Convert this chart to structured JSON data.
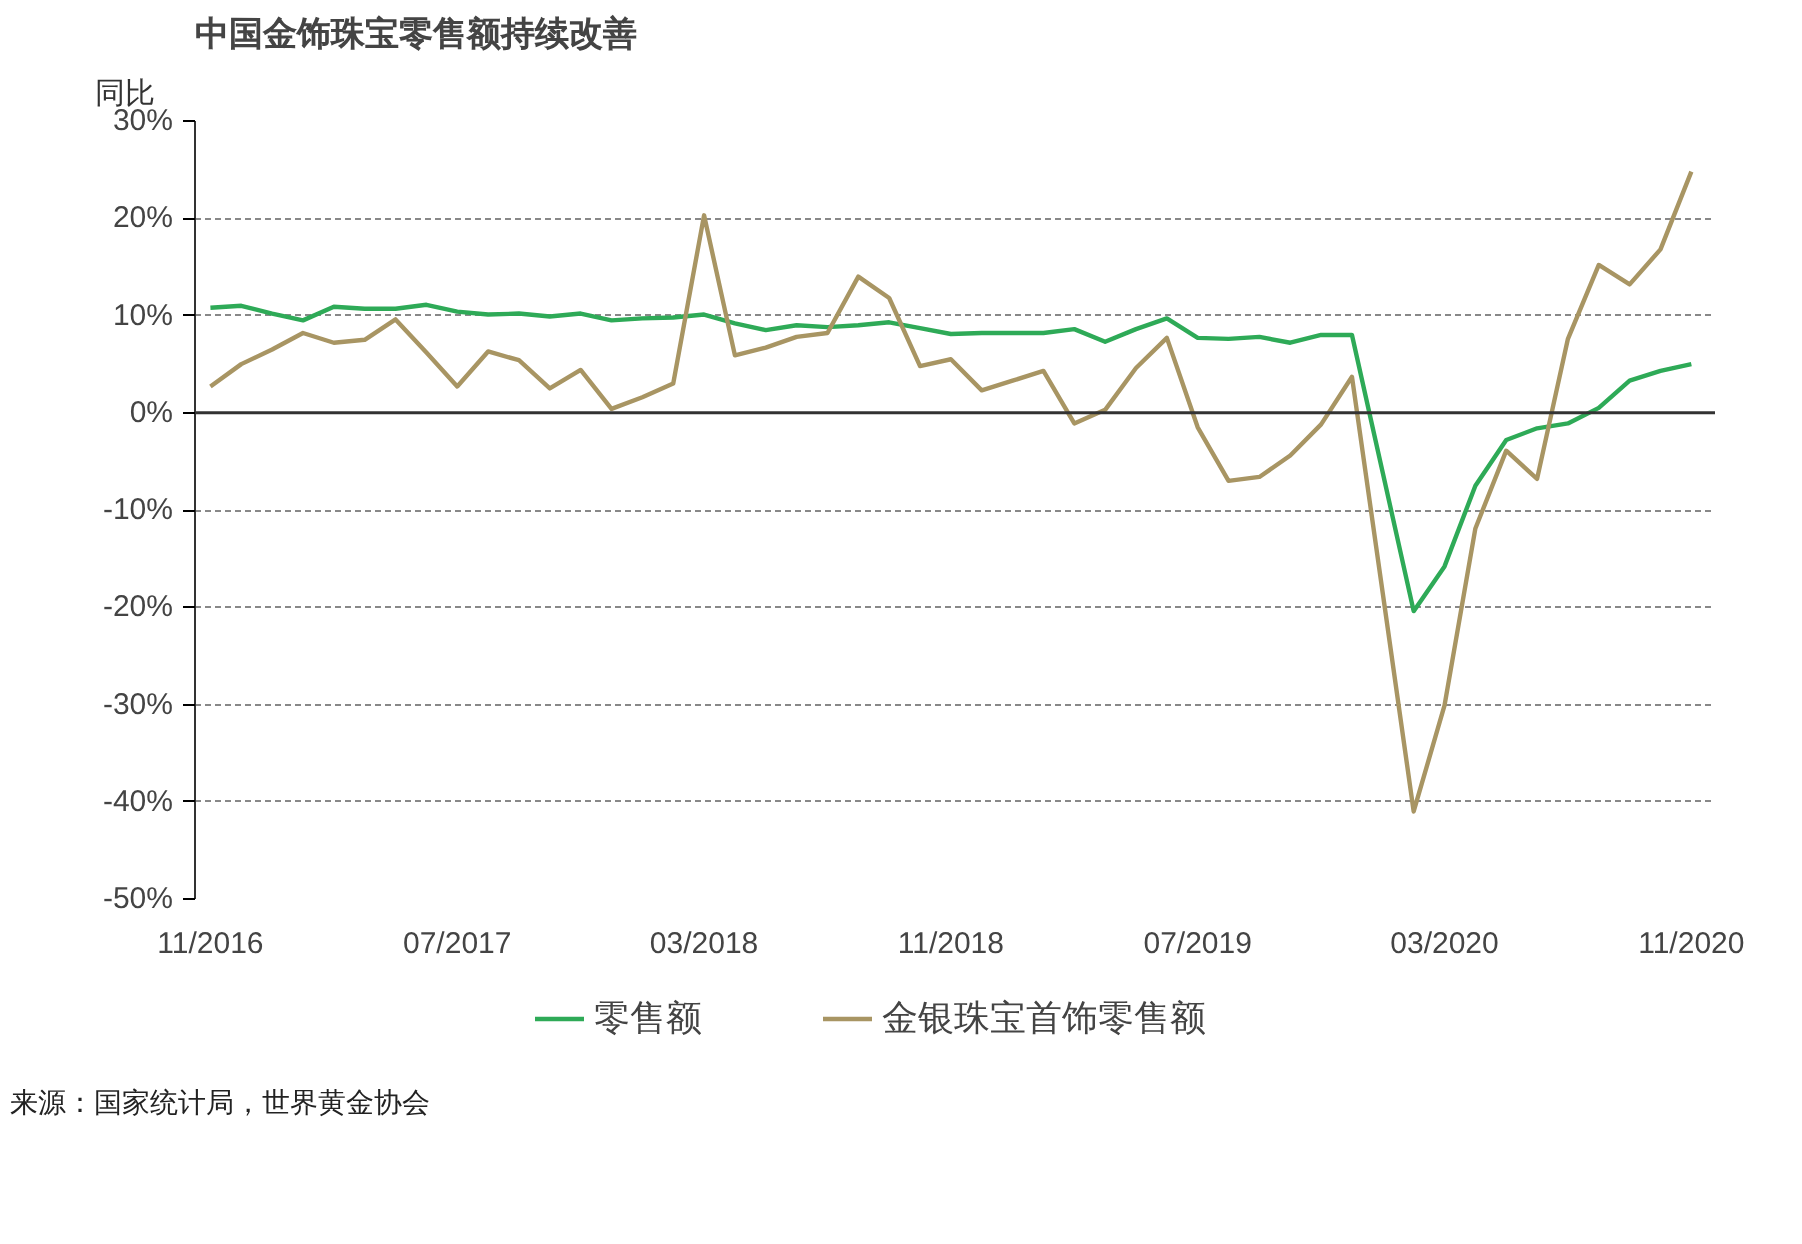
{
  "chart_data": {
    "type": "line",
    "title": "中国金饰珠宝零售额持续改善",
    "ylabel": "同比",
    "x": [
      "2016-11",
      "2016-12",
      "2017-01",
      "2017-02",
      "2017-03",
      "2017-04",
      "2017-05",
      "2017-06",
      "2017-07",
      "2017-08",
      "2017-09",
      "2017-10",
      "2017-11",
      "2017-12",
      "2018-01",
      "2018-02",
      "2018-03",
      "2018-04",
      "2018-05",
      "2018-06",
      "2018-07",
      "2018-08",
      "2018-09",
      "2018-10",
      "2018-11",
      "2018-12",
      "2019-01",
      "2019-02",
      "2019-03",
      "2019-04",
      "2019-05",
      "2019-06",
      "2019-07",
      "2019-08",
      "2019-09",
      "2019-10",
      "2019-11",
      "2019-12",
      "2020-01",
      "2020-02",
      "2020-03",
      "2020-04",
      "2020-05",
      "2020-06",
      "2020-07",
      "2020-08",
      "2020-09",
      "2020-10",
      "2020-11"
    ],
    "series": [
      {
        "name": "零售额",
        "color": "#2eaa57",
        "values": [
          10.8,
          11.0,
          10.2,
          9.5,
          10.9,
          10.7,
          10.7,
          11.1,
          10.4,
          10.1,
          10.2,
          9.9,
          10.2,
          9.5,
          9.7,
          9.8,
          10.1,
          9.2,
          8.5,
          9.0,
          8.8,
          9.0,
          9.3,
          8.7,
          8.1,
          8.2,
          8.2,
          8.2,
          8.6,
          7.3,
          8.6,
          9.7,
          7.7,
          7.6,
          7.8,
          7.2,
          8.0,
          8.0,
          -6.2,
          -20.4,
          -15.8,
          -7.5,
          -2.8,
          -1.6,
          -1.1,
          0.5,
          3.3,
          4.3,
          5.0
        ]
      },
      {
        "name": "金银珠宝首饰零售额",
        "color": "#a89563",
        "values": [
          2.7,
          5.0,
          6.5,
          8.2,
          7.2,
          7.5,
          9.6,
          6.2,
          2.7,
          6.3,
          5.4,
          2.5,
          4.4,
          0.4,
          1.6,
          3.0,
          20.3,
          5.9,
          6.7,
          7.8,
          8.2,
          14.0,
          11.8,
          4.8,
          5.5,
          2.3,
          3.3,
          4.3,
          -1.1,
          0.3,
          4.6,
          7.7,
          -1.5,
          -7.0,
          -6.6,
          -4.4,
          -1.2,
          3.7,
          -18.6,
          -41.0,
          -30.1,
          -11.9,
          -3.9,
          -6.8,
          7.6,
          15.2,
          13.2,
          16.8,
          24.8
        ]
      }
    ],
    "xlim": [
      "2016-10-16",
      "2020-11-24"
    ],
    "xticks": [
      {
        "value": "2016-11",
        "label": "11/2016"
      },
      {
        "value": "2017-07",
        "label": "07/2017"
      },
      {
        "value": "2018-03",
        "label": "03/2018"
      },
      {
        "value": "2018-11",
        "label": "11/2018"
      },
      {
        "value": "2019-07",
        "label": "07/2019"
      },
      {
        "value": "2020-03",
        "label": "03/2020"
      },
      {
        "value": "2020-11",
        "label": "11/2020"
      }
    ],
    "ylim": [
      -50,
      30
    ],
    "yticks": [
      {
        "value": -50,
        "label": "-50%"
      },
      {
        "value": -40,
        "label": "-40%"
      },
      {
        "value": -30,
        "label": "-30%"
      },
      {
        "value": -20,
        "label": "-20%"
      },
      {
        "value": -10,
        "label": "-10%"
      },
      {
        "value": 0,
        "label": "0%"
      },
      {
        "value": 10,
        "label": "10%"
      },
      {
        "value": 20,
        "label": "20%"
      },
      {
        "value": 30,
        "label": "30%"
      }
    ],
    "grid": "y",
    "legend": "bottom",
    "line_style": "solid",
    "marker": "none",
    "annotations": [
      "来源：国家统计局，世界黄金协会"
    ]
  }
}
